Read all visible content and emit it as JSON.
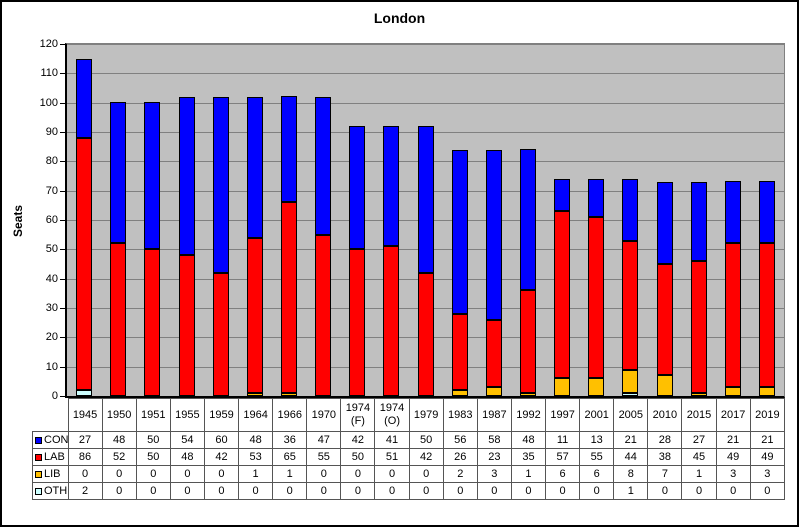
{
  "chart_data": {
    "type": "bar",
    "stacked": true,
    "title": "London",
    "ylabel": "Seats",
    "ylim": [
      0,
      120
    ],
    "ytick_step": 10,
    "grid": true,
    "legend_position": "table-left",
    "plot_bg_color": "#C0C0C0",
    "gridline_color": "#808080",
    "categories": [
      "1945",
      "1950",
      "1951",
      "1955",
      "1959",
      "1964",
      "1966",
      "1970",
      "1974 (F)",
      "1974 (O)",
      "1979",
      "1983",
      "1987",
      "1992",
      "1997",
      "2001",
      "2005",
      "2010",
      "2015",
      "2017",
      "2019"
    ],
    "series": [
      {
        "name": "CON",
        "color": "#0000FF",
        "values": [
          27,
          48,
          50,
          54,
          60,
          48,
          36,
          47,
          42,
          41,
          50,
          56,
          58,
          48,
          11,
          13,
          21,
          28,
          27,
          21,
          21
        ]
      },
      {
        "name": "LAB",
        "color": "#FF0000",
        "values": [
          86,
          52,
          50,
          48,
          42,
          53,
          65,
          55,
          50,
          51,
          42,
          26,
          23,
          35,
          57,
          55,
          44,
          38,
          45,
          49,
          49
        ]
      },
      {
        "name": "LIB",
        "color": "#FFC000",
        "values": [
          0,
          0,
          0,
          0,
          0,
          1,
          1,
          0,
          0,
          0,
          0,
          2,
          3,
          1,
          6,
          6,
          8,
          7,
          1,
          3,
          3
        ]
      },
      {
        "name": "OTH",
        "color": "#CCFFFF",
        "values": [
          2,
          0,
          0,
          0,
          0,
          0,
          0,
          0,
          0,
          0,
          0,
          0,
          0,
          0,
          0,
          0,
          1,
          0,
          0,
          0,
          0
        ]
      }
    ],
    "stack_order_bottom_to_top": [
      "OTH",
      "LIB",
      "LAB",
      "CON"
    ]
  }
}
